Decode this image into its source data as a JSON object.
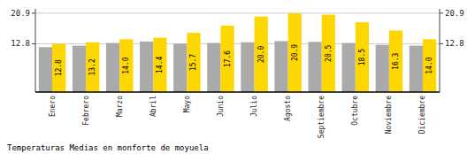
{
  "chart_data": {
    "type": "bar",
    "title": "Temperaturas Medias en monforte de moyuela",
    "categories": [
      "Enero",
      "Febrero",
      "Marzo",
      "Abril",
      "Mayo",
      "Junio",
      "Julio",
      "Agosto",
      "Septiembre",
      "Octubre",
      "Noviembre",
      "Diciembre"
    ],
    "series": [
      {
        "color": "#AAAAAA",
        "values": [
          11.9,
          12.3,
          13.0,
          13.4,
          12.8,
          13.0,
          13.2,
          13.5,
          13.3,
          13.0,
          12.5,
          12.3
        ]
      },
      {
        "color": "#FFD700",
        "values": [
          12.8,
          13.2,
          14.0,
          14.4,
          15.7,
          17.6,
          20.0,
          20.9,
          20.5,
          18.5,
          16.3,
          14.0
        ],
        "data_labels": true,
        "value_labels": [
          "12.8",
          "13.2",
          "14.0",
          "14.4",
          "15.7",
          "17.6",
          "20.0",
          "20.9",
          "20.5",
          "18.5",
          "16.3",
          "14.0"
        ]
      }
    ],
    "ylim": [
      0,
      22.0495
    ],
    "yticks": [
      12.8,
      20.9
    ],
    "grid": true
  }
}
